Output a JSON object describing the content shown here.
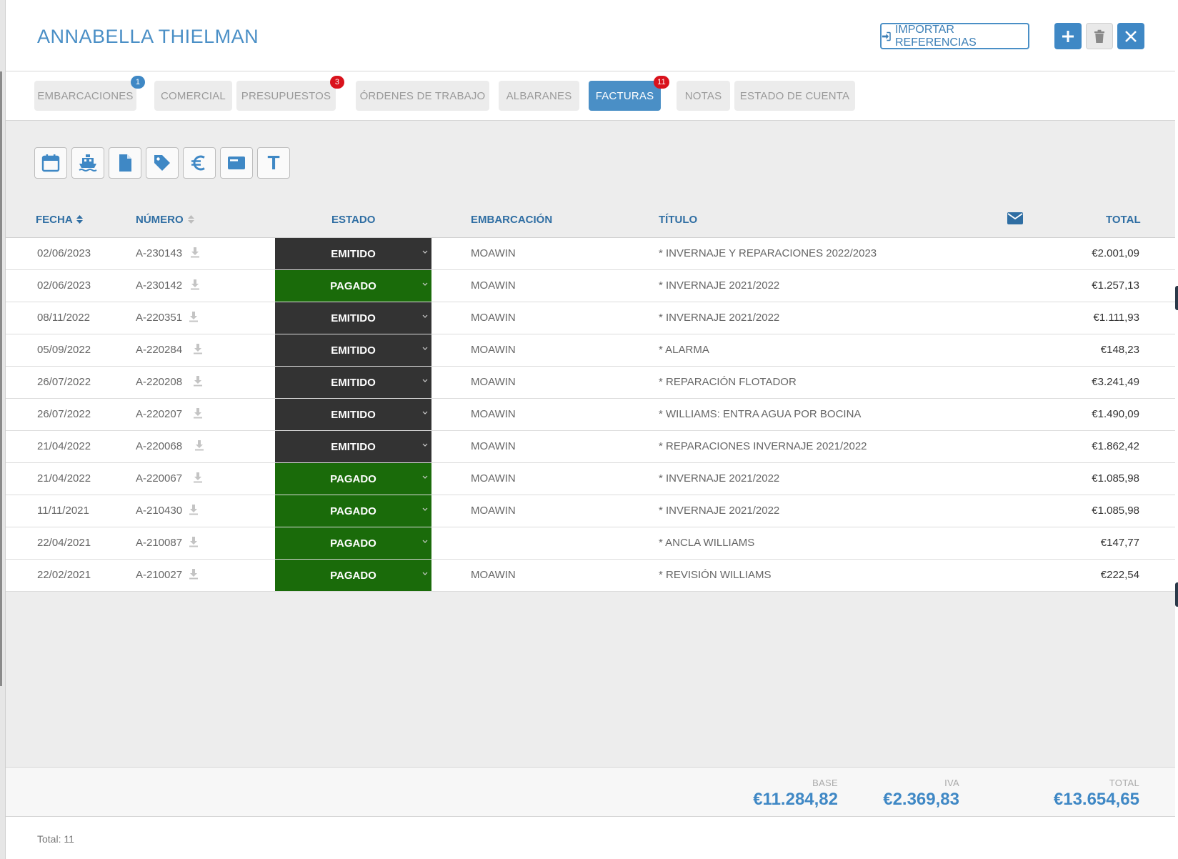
{
  "header": {
    "title": "ANNABELLA THIELMAN",
    "import_label": "IMPORTAR REFERENCIAS"
  },
  "tabs": [
    {
      "label": "EMBARCACIONES",
      "badge": "1",
      "badge_color": "#3f88c5",
      "active": false
    },
    {
      "label": "COMERCIAL",
      "badge": "",
      "active": false
    },
    {
      "label": "PRESUPUESTOS",
      "badge": "3",
      "badge_color": "#d9121c",
      "active": false
    },
    {
      "label": "ÓRDENES DE TRABAJO",
      "badge": "",
      "active": false
    },
    {
      "label": "ALBARANES",
      "badge": "",
      "active": false
    },
    {
      "label": "FACTURAS",
      "badge": "11",
      "badge_color": "#d9121c",
      "active": true
    },
    {
      "label": "NOTAS",
      "badge": "",
      "active": false
    },
    {
      "label": "ESTADO DE CUENTA",
      "badge": "",
      "active": false
    }
  ],
  "toolbar_icons": [
    "calendar-icon",
    "boat-icon",
    "document-icon",
    "tag-icon",
    "euro-icon",
    "card-icon",
    "text-icon"
  ],
  "toolbar_text_glyph": "T",
  "table": {
    "headers": {
      "fecha": "FECHA",
      "numero": "NÚMERO",
      "estado": "ESTADO",
      "embarcacion": "EMBARCACIÓN",
      "titulo": "TÍTULO",
      "total": "TOTAL"
    },
    "rows": [
      {
        "fecha": "02/06/2023",
        "numero": "A-230143",
        "estado": "EMITIDO",
        "embarcacion": "MOAWIN",
        "titulo": "* INVERNAJE Y REPARACIONES 2022/2023",
        "total": "€2.001,09"
      },
      {
        "fecha": "02/06/2023",
        "numero": "A-230142",
        "estado": "PAGADO",
        "embarcacion": "MOAWIN",
        "titulo": "* INVERNAJE 2021/2022",
        "total": "€1.257,13"
      },
      {
        "fecha": "08/11/2022",
        "numero": "A-220351",
        "estado": "EMITIDO",
        "embarcacion": "MOAWIN",
        "titulo": "* INVERNAJE 2021/2022",
        "total": "€1.111,93"
      },
      {
        "fecha": "05/09/2022",
        "numero": "A-220284",
        "estado": "EMITIDO",
        "embarcacion": "MOAWIN",
        "titulo": "* ALARMA",
        "total": "€148,23"
      },
      {
        "fecha": "26/07/2022",
        "numero": "A-220208",
        "estado": "EMITIDO",
        "embarcacion": "MOAWIN",
        "titulo": "* REPARACIÓN FLOTADOR",
        "total": "€3.241,49"
      },
      {
        "fecha": "26/07/2022",
        "numero": "A-220207",
        "estado": "EMITIDO",
        "embarcacion": "MOAWIN",
        "titulo": "* WILLIAMS: ENTRA AGUA POR BOCINA",
        "total": "€1.490,09"
      },
      {
        "fecha": "21/04/2022",
        "numero": "A-220068",
        "estado": "EMITIDO",
        "embarcacion": "MOAWIN",
        "titulo": "* REPARACIONES INVERNAJE 2021/2022",
        "total": "€1.862,42"
      },
      {
        "fecha": "21/04/2022",
        "numero": "A-220067",
        "estado": "PAGADO",
        "embarcacion": "MOAWIN",
        "titulo": "* INVERNAJE 2021/2022",
        "total": "€1.085,98"
      },
      {
        "fecha": "11/11/2021",
        "numero": "A-210430",
        "estado": "PAGADO",
        "embarcacion": "MOAWIN",
        "titulo": "* INVERNAJE 2021/2022",
        "total": "€1.085,98"
      },
      {
        "fecha": "22/04/2021",
        "numero": "A-210087",
        "estado": "PAGADO",
        "embarcacion": "",
        "titulo": "* ANCLA WILLIAMS",
        "total": "€147,77"
      },
      {
        "fecha": "22/02/2021",
        "numero": "A-210027",
        "estado": "PAGADO",
        "embarcacion": "MOAWIN",
        "titulo": "* REVISIÓN WILLIAMS",
        "total": "€222,54"
      }
    ]
  },
  "status_colors": {
    "EMITIDO": "#333333",
    "PAGADO": "#1a6b0a"
  },
  "summary": {
    "base_label": "BASE",
    "base_value": "€11.284,82",
    "iva_label": "IVA",
    "iva_value": "€2.369,83",
    "total_label": "TOTAL",
    "total_value": "€13.654,65"
  },
  "footer": {
    "count": "Total: 11"
  }
}
